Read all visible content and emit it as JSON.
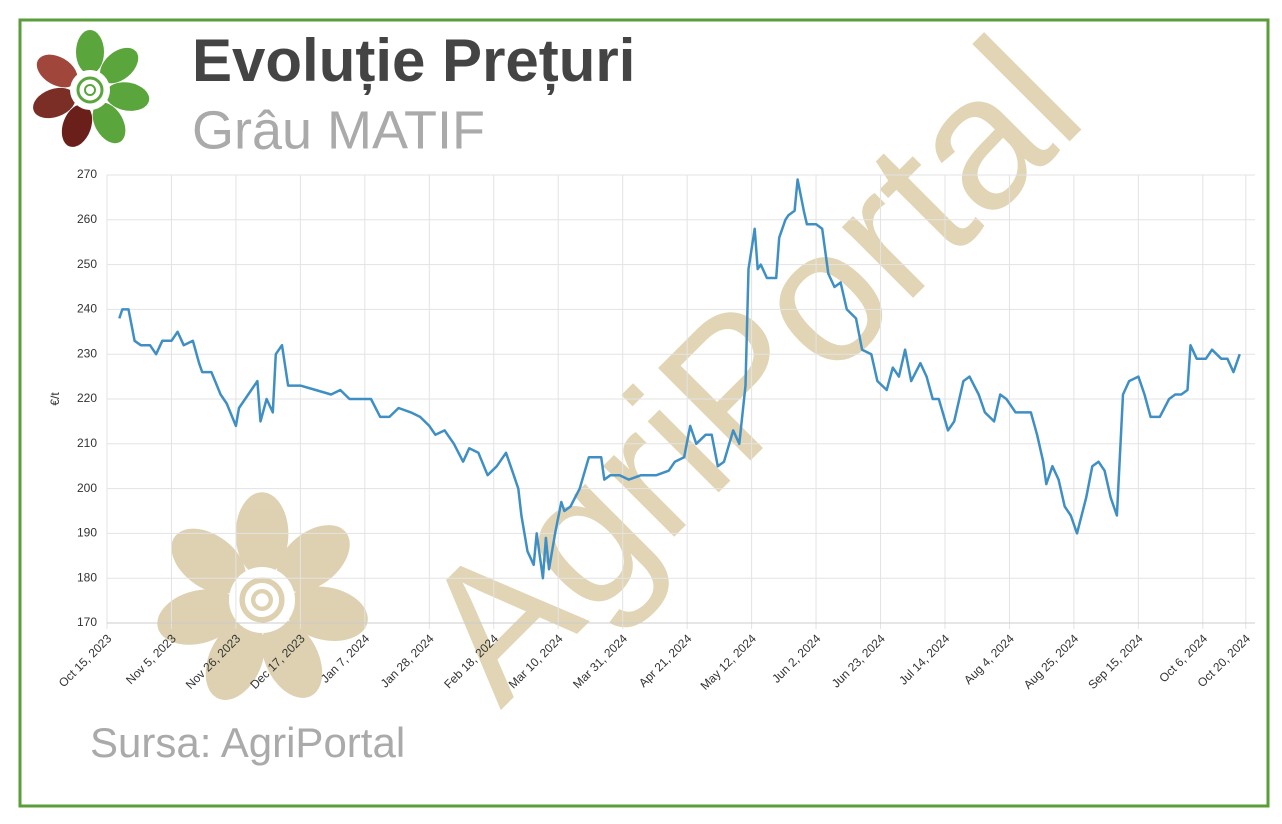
{
  "chart_data": {
    "type": "line",
    "title": "Evoluție Prețuri",
    "subtitle": "Grâu MATIF",
    "source": "Sursa: AgriPortal",
    "watermark": "AgriPortal",
    "ylabel": "€/t",
    "grid": true,
    "xlim": [
      "2023-10-15",
      "2024-10-23"
    ],
    "ylim": [
      170,
      270
    ],
    "yticks": [
      170,
      180,
      190,
      200,
      210,
      220,
      230,
      240,
      250,
      260,
      270
    ],
    "xticks": [
      {
        "value": "2023-10-15",
        "label": "Oct 15, 2023"
      },
      {
        "value": "2023-11-05",
        "label": "Nov 5, 2023"
      },
      {
        "value": "2023-11-26",
        "label": "Nov 26, 2023"
      },
      {
        "value": "2023-12-17",
        "label": "Dec 17, 2023"
      },
      {
        "value": "2024-01-07",
        "label": "Jan 7, 2024"
      },
      {
        "value": "2024-01-28",
        "label": "Jan 28, 2024"
      },
      {
        "value": "2024-02-18",
        "label": "Feb 18, 2024"
      },
      {
        "value": "2024-03-10",
        "label": "Mar 10, 2024"
      },
      {
        "value": "2024-03-31",
        "label": "Mar 31, 2024"
      },
      {
        "value": "2024-04-21",
        "label": "Apr 21, 2024"
      },
      {
        "value": "2024-05-12",
        "label": "May 12, 2024"
      },
      {
        "value": "2024-06-02",
        "label": "Jun 2, 2024"
      },
      {
        "value": "2024-06-23",
        "label": "Jun 23, 2024"
      },
      {
        "value": "2024-07-14",
        "label": "Jul 14, 2024"
      },
      {
        "value": "2024-08-04",
        "label": "Aug 4, 2024"
      },
      {
        "value": "2024-08-25",
        "label": "Aug 25, 2024"
      },
      {
        "value": "2024-09-15",
        "label": "Sep 15, 2024"
      },
      {
        "value": "2024-10-06",
        "label": "Oct 6, 2024"
      },
      {
        "value": "2024-10-20",
        "label": "Oct 20, 2024"
      }
    ],
    "color": "#3f8fc4",
    "x": [
      "2023-10-19",
      "2023-10-20",
      "2023-10-22",
      "2023-10-24",
      "2023-10-26",
      "2023-10-29",
      "2023-10-31",
      "2023-11-02",
      "2023-11-05",
      "2023-11-07",
      "2023-11-09",
      "2023-11-12",
      "2023-11-14",
      "2023-11-15",
      "2023-11-18",
      "2023-11-21",
      "2023-11-23",
      "2023-11-26",
      "2023-11-27",
      "2023-12-01",
      "2023-12-03",
      "2023-12-04",
      "2023-12-06",
      "2023-12-08",
      "2023-12-09",
      "2023-12-11",
      "2023-12-13",
      "2023-12-17",
      "2023-12-22",
      "2023-12-27",
      "2023-12-30",
      "2024-01-02",
      "2024-01-05",
      "2024-01-09",
      "2024-01-12",
      "2024-01-15",
      "2024-01-18",
      "2024-01-22",
      "2024-01-25",
      "2024-01-28",
      "2024-01-30",
      "2024-02-02",
      "2024-02-05",
      "2024-02-08",
      "2024-02-10",
      "2024-02-13",
      "2024-02-16",
      "2024-02-19",
      "2024-02-22",
      "2024-02-24",
      "2024-02-26",
      "2024-02-27",
      "2024-02-29",
      "2024-03-02",
      "2024-03-03",
      "2024-03-05",
      "2024-03-06",
      "2024-03-07",
      "2024-03-09",
      "2024-03-11",
      "2024-03-12",
      "2024-03-14",
      "2024-03-17",
      "2024-03-20",
      "2024-03-24",
      "2024-03-25",
      "2024-03-27",
      "2024-03-30",
      "2024-04-02",
      "2024-04-06",
      "2024-04-09",
      "2024-04-11",
      "2024-04-15",
      "2024-04-17",
      "2024-04-20",
      "2024-04-22",
      "2024-04-24",
      "2024-04-27",
      "2024-04-29",
      "2024-05-01",
      "2024-05-03",
      "2024-05-06",
      "2024-05-08",
      "2024-05-10",
      "2024-05-11",
      "2024-05-13",
      "2024-05-14",
      "2024-05-15",
      "2024-05-17",
      "2024-05-20",
      "2024-05-21",
      "2024-05-23",
      "2024-05-24",
      "2024-05-26",
      "2024-05-27",
      "2024-05-29",
      "2024-05-30",
      "2024-06-02",
      "2024-06-04",
      "2024-06-06",
      "2024-06-08",
      "2024-06-10",
      "2024-06-12",
      "2024-06-15",
      "2024-06-17",
      "2024-06-20",
      "2024-06-22",
      "2024-06-25",
      "2024-06-27",
      "2024-06-29",
      "2024-07-01",
      "2024-07-03",
      "2024-07-06",
      "2024-07-08",
      "2024-07-10",
      "2024-07-12",
      "2024-07-15",
      "2024-07-17",
      "2024-07-20",
      "2024-07-22",
      "2024-07-25",
      "2024-07-27",
      "2024-07-30",
      "2024-08-01",
      "2024-08-03",
      "2024-08-06",
      "2024-08-08",
      "2024-08-11",
      "2024-08-13",
      "2024-08-15",
      "2024-08-16",
      "2024-08-18",
      "2024-08-20",
      "2024-08-22",
      "2024-08-24",
      "2024-08-26",
      "2024-08-29",
      "2024-08-31",
      "2024-09-02",
      "2024-09-04",
      "2024-09-06",
      "2024-09-08",
      "2024-09-10",
      "2024-09-12",
      "2024-09-15",
      "2024-09-17",
      "2024-09-19",
      "2024-09-22",
      "2024-09-25",
      "2024-09-27",
      "2024-09-29",
      "2024-10-01",
      "2024-10-02",
      "2024-10-04",
      "2024-10-07",
      "2024-10-09",
      "2024-10-12",
      "2024-10-14",
      "2024-10-16",
      "2024-10-18"
    ],
    "values": [
      238,
      240,
      240,
      233,
      232,
      232,
      230,
      233,
      233,
      235,
      232,
      233,
      228,
      226,
      226,
      221,
      219,
      214,
      218,
      222,
      224,
      215,
      220,
      217,
      230,
      232,
      223,
      223,
      222,
      221,
      222,
      220,
      220,
      220,
      216,
      216,
      218,
      217,
      216,
      214,
      212,
      213,
      210,
      206,
      209,
      208,
      203,
      205,
      208,
      204,
      200,
      194,
      186,
      183,
      190,
      180,
      189,
      182,
      190,
      197,
      195,
      196,
      200,
      207,
      207,
      202,
      203,
      203,
      202,
      203,
      203,
      203,
      204,
      206,
      207,
      214,
      210,
      212,
      212,
      205,
      206,
      213,
      210,
      223,
      249,
      258,
      249,
      250,
      247,
      247,
      256,
      260,
      261,
      262,
      269,
      262,
      259,
      259,
      258,
      248,
      245,
      246,
      240,
      238,
      231,
      230,
      224,
      222,
      227,
      225,
      231,
      224,
      228,
      225,
      220,
      220,
      213,
      215,
      224,
      225,
      221,
      217,
      215,
      221,
      220,
      217,
      217,
      217,
      212,
      206,
      201,
      205,
      202,
      196,
      194,
      190,
      198,
      205,
      206,
      204,
      198,
      194,
      221,
      224,
      225,
      221,
      216,
      216,
      220,
      221,
      221,
      222,
      232,
      229,
      229,
      231,
      229,
      229,
      226,
      230
    ]
  }
}
